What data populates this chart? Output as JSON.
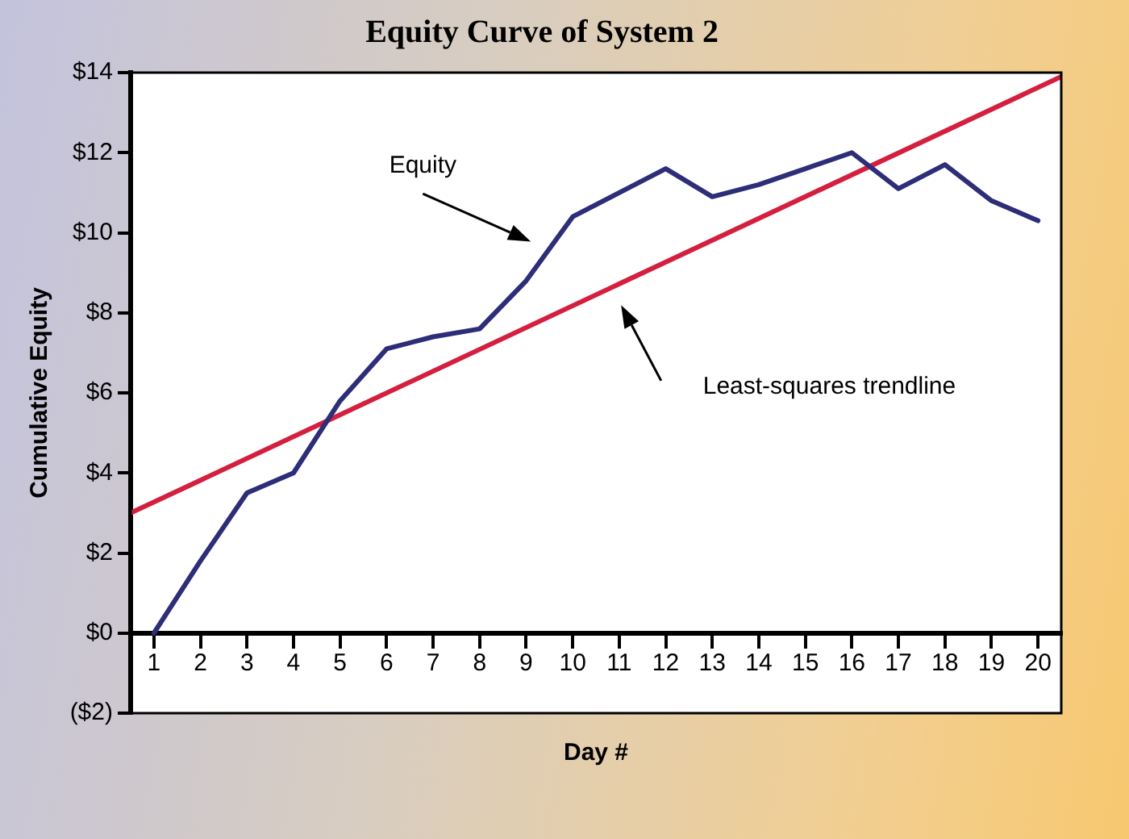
{
  "chart_data": {
    "type": "line",
    "title": "Equity Curve of System 2",
    "xlabel": "Day #",
    "ylabel": "Cumulative Equity",
    "x": [
      1,
      2,
      3,
      4,
      5,
      6,
      7,
      8,
      9,
      10,
      11,
      12,
      13,
      14,
      15,
      16,
      17,
      18,
      19,
      20
    ],
    "xlim": [
      0.5,
      20.5
    ],
    "xticks": [
      1,
      2,
      3,
      4,
      5,
      6,
      7,
      8,
      9,
      10,
      11,
      12,
      13,
      14,
      15,
      16,
      17,
      18,
      19,
      20
    ],
    "ylim": [
      -2,
      14
    ],
    "yticks": [
      {
        "value": -2,
        "label": "($2)"
      },
      {
        "value": 0,
        "label": "$0"
      },
      {
        "value": 2,
        "label": "$2"
      },
      {
        "value": 4,
        "label": "$4"
      },
      {
        "value": 6,
        "label": "$6"
      },
      {
        "value": 8,
        "label": "$8"
      },
      {
        "value": 10,
        "label": "$10"
      },
      {
        "value": 12,
        "label": "$12"
      },
      {
        "value": 14,
        "label": "$14"
      }
    ],
    "series": [
      {
        "color": "#2d2d78",
        "values": [
          0,
          1.8,
          3.5,
          4.0,
          5.8,
          7.1,
          7.4,
          7.6,
          8.8,
          10.4,
          11.0,
          11.6,
          10.9,
          11.2,
          11.6,
          12.0,
          11.1,
          11.7,
          10.8,
          10.3
        ]
      },
      {
        "type": "line",
        "color": "#d41f3f",
        "x": [
          0.5,
          20.5
        ],
        "values": [
          3.0,
          13.9
        ]
      }
    ],
    "annotations": [
      "Equity",
      "Least-squares trendline"
    ],
    "grid": false,
    "legend": false,
    "marker": "none",
    "line_style": "solid"
  }
}
